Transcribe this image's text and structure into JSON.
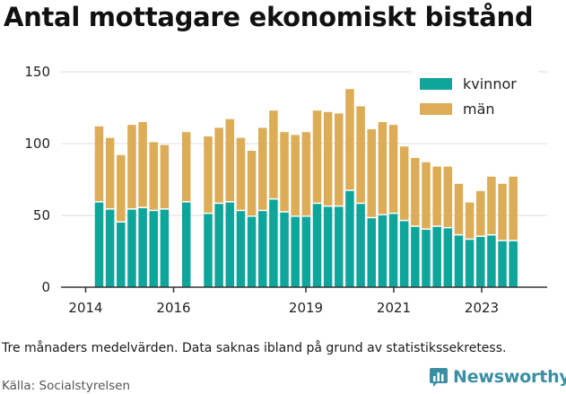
{
  "title": "Antal mottagare ekonomiskt bistånd",
  "note": "Tre månaders medelvärden. Data saknas ibland på grund av statistikssekretess.",
  "source": "Källa: Socialstyrelsen",
  "brand": {
    "name": "Newsworthy",
    "logo_icon": "newsworthy-logo-icon",
    "color": "#3a8fa3"
  },
  "colors": {
    "kvinnor": "#0ea59b",
    "man": "#dcad56",
    "grid": "#dddddd",
    "axis": "#333333"
  },
  "chart_data": {
    "type": "bar",
    "stacked": true,
    "title": "Antal mottagare ekonomiskt bistånd",
    "xlabel": "",
    "ylabel": "",
    "ylim": [
      0,
      150
    ],
    "yticks": [
      0,
      50,
      100,
      150
    ],
    "xticks": [
      "2014",
      "2016",
      "2019",
      "2021",
      "2023"
    ],
    "grid": true,
    "legend_position": "top-right",
    "x": [
      "2014-Q2",
      "2014-Q3",
      "2014-Q4",
      "2015-Q1",
      "2015-Q2",
      "2015-Q3",
      "2015-Q4",
      "2016-Q1",
      "2016-Q2",
      "2016-Q3",
      "2016-Q4",
      "2017-Q1",
      "2017-Q2",
      "2017-Q3",
      "2017-Q4",
      "2018-Q1",
      "2018-Q2",
      "2018-Q3",
      "2018-Q4",
      "2019-Q1",
      "2019-Q2",
      "2019-Q3",
      "2019-Q4",
      "2020-Q1",
      "2020-Q2",
      "2020-Q3",
      "2020-Q4",
      "2021-Q1",
      "2021-Q2",
      "2021-Q3",
      "2021-Q4",
      "2022-Q1",
      "2022-Q2",
      "2022-Q3",
      "2022-Q4",
      "2023-Q1",
      "2023-Q2",
      "2023-Q3",
      "2023-Q4"
    ],
    "series": [
      {
        "name": "kvinnor",
        "color": "#0ea59b",
        "values": [
          59,
          54,
          45,
          54,
          55,
          53,
          54,
          null,
          59,
          null,
          51,
          58,
          59,
          53,
          49,
          53,
          61,
          52,
          49,
          49,
          58,
          56,
          56,
          67,
          58,
          48,
          50,
          51,
          46,
          42,
          40,
          42,
          41,
          36,
          33,
          35,
          36,
          32,
          32
        ]
      },
      {
        "name": "män",
        "color": "#dcad56",
        "values": [
          53,
          50,
          47,
          59,
          60,
          48,
          45,
          null,
          49,
          null,
          54,
          53,
          58,
          51,
          46,
          58,
          62,
          56,
          57,
          59,
          65,
          66,
          65,
          71,
          68,
          62,
          65,
          62,
          52,
          48,
          47,
          42,
          43,
          36,
          26,
          32,
          41,
          40,
          45
        ]
      }
    ]
  }
}
